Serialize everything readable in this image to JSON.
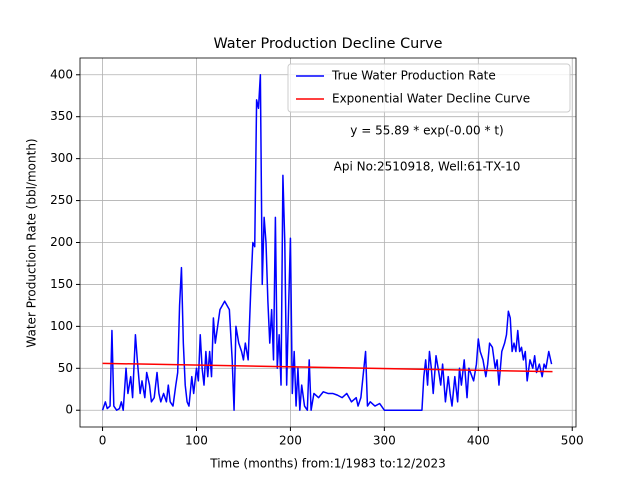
{
  "chart_data": {
    "type": "line",
    "title": "Water Production Decline Curve",
    "x_label": "Time (months) from:1/1983 to:12/2023",
    "y_label": "Water Production Rate (bbl/month)",
    "annotations": [
      "y = 55.89 * exp(-0.00 * t)",
      "Api No:2510918, Well:61-TX-10"
    ],
    "xlim": [
      -24,
      504
    ],
    "ylim": [
      -20,
      420
    ],
    "xticks": [
      0,
      100,
      200,
      300,
      400,
      500
    ],
    "yticks": [
      0,
      50,
      100,
      150,
      200,
      250,
      300,
      350,
      400
    ],
    "grid": true,
    "legend": "upper right",
    "series": [
      {
        "name": "True Water Production Rate",
        "color": "#0000ff",
        "x": [
          0,
          3,
          5,
          8,
          10,
          12,
          15,
          18,
          20,
          22,
          25,
          27,
          30,
          32,
          35,
          37,
          40,
          42,
          45,
          47,
          50,
          52,
          55,
          58,
          60,
          62,
          65,
          68,
          70,
          72,
          75,
          78,
          80,
          82,
          84,
          86,
          88,
          90,
          92,
          95,
          97,
          100,
          102,
          104,
          106,
          108,
          110,
          112,
          114,
          116,
          118,
          120,
          125,
          130,
          135,
          138,
          140,
          142,
          145,
          148,
          150,
          152,
          155,
          158,
          160,
          162,
          164,
          166,
          168,
          170,
          172,
          174,
          176,
          178,
          180,
          182,
          184,
          186,
          188,
          190,
          192,
          194,
          196,
          198,
          200,
          202,
          204,
          206,
          208,
          210,
          212,
          215,
          218,
          220,
          222,
          225,
          230,
          235,
          240,
          245,
          250,
          255,
          260,
          265,
          270,
          272,
          275,
          280,
          282,
          285,
          290,
          295,
          300,
          310,
          320,
          330,
          340,
          342,
          344,
          346,
          348,
          350,
          352,
          355,
          358,
          360,
          362,
          365,
          368,
          370,
          372,
          375,
          378,
          380,
          382,
          385,
          388,
          390,
          395,
          398,
          400,
          402,
          405,
          408,
          410,
          412,
          415,
          418,
          420,
          422,
          425,
          428,
          430,
          432,
          434,
          436,
          438,
          440,
          442,
          444,
          446,
          448,
          450,
          452,
          455,
          458,
          460,
          462,
          465,
          468,
          470,
          472,
          475,
          478
        ],
        "values": [
          0,
          10,
          2,
          5,
          95,
          5,
          0,
          2,
          10,
          0,
          50,
          20,
          40,
          15,
          90,
          60,
          20,
          35,
          15,
          45,
          30,
          10,
          15,
          45,
          20,
          10,
          20,
          10,
          30,
          10,
          5,
          30,
          45,
          125,
          170,
          80,
          30,
          10,
          5,
          40,
          20,
          50,
          35,
          90,
          50,
          30,
          70,
          40,
          70,
          40,
          110,
          80,
          120,
          130,
          120,
          60,
          0,
          100,
          80,
          70,
          60,
          80,
          60,
          150,
          200,
          195,
          370,
          360,
          400,
          150,
          230,
          200,
          130,
          80,
          120,
          60,
          230,
          50,
          90,
          30,
          280,
          200,
          30,
          120,
          205,
          20,
          70,
          5,
          50,
          0,
          30,
          5,
          0,
          60,
          0,
          20,
          15,
          22,
          20,
          20,
          18,
          15,
          20,
          10,
          15,
          5,
          15,
          70,
          5,
          10,
          5,
          8,
          0,
          0,
          0,
          0,
          0,
          40,
          60,
          30,
          70,
          50,
          20,
          65,
          45,
          30,
          55,
          10,
          40,
          20,
          5,
          40,
          10,
          50,
          30,
          60,
          15,
          50,
          35,
          55,
          85,
          70,
          60,
          40,
          55,
          80,
          75,
          50,
          60,
          30,
          70,
          80,
          90,
          118,
          110,
          70,
          80,
          70,
          95,
          70,
          75,
          60,
          70,
          35,
          60,
          50,
          65,
          45,
          55,
          40,
          55,
          50,
          70,
          55
        ]
      },
      {
        "name": "Exponential Water Decline Curve",
        "color": "#ff0000",
        "x": [
          0,
          479
        ],
        "values": [
          55.89,
          46
        ]
      }
    ]
  }
}
